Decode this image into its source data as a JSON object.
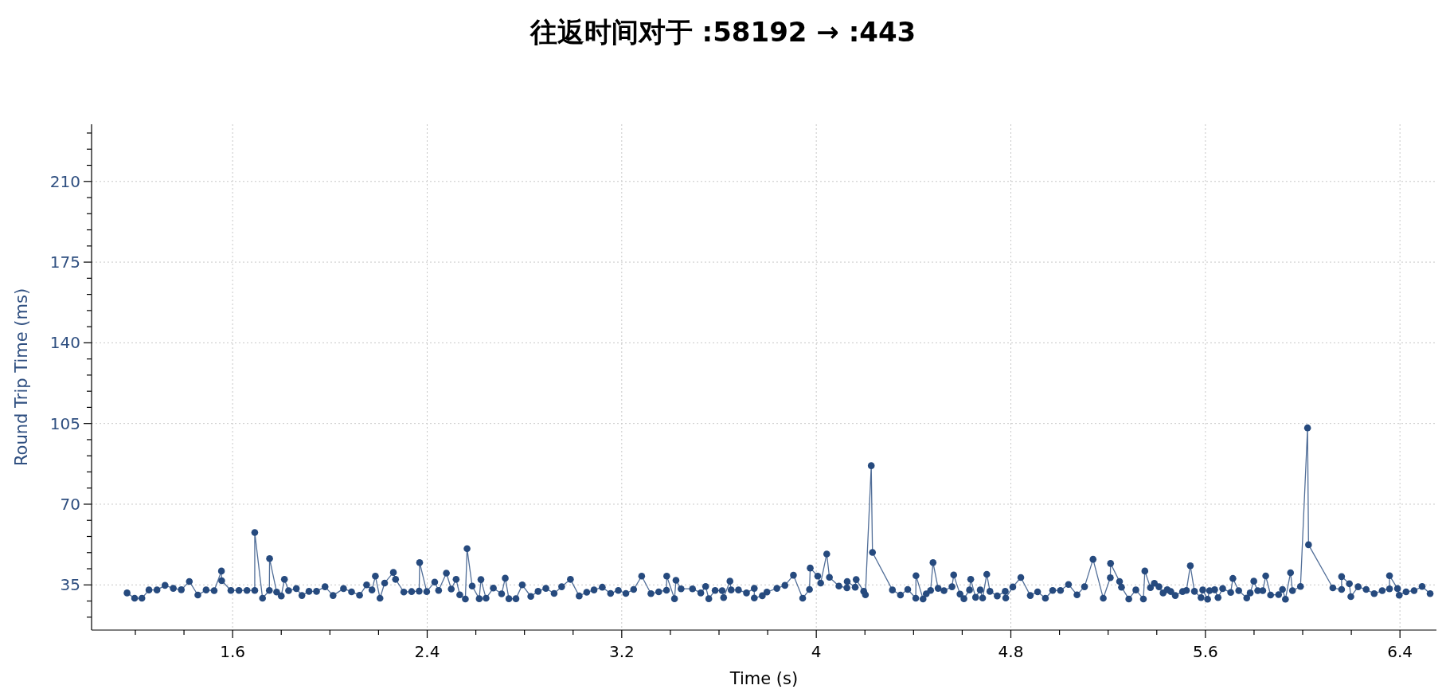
{
  "chart_data": {
    "type": "line",
    "title": "往返时间对于 :58192 → :443",
    "xlabel": "Time (s)",
    "ylabel": "Round Trip Time (ms)",
    "xlim": [
      1.02,
      6.55
    ],
    "ylim": [
      15.4,
      234.8
    ],
    "xticks": [
      {
        "value": 1.2,
        "label": null
      },
      {
        "value": 1.4,
        "label": null
      },
      1.6,
      {
        "value": 1.8,
        "label": null
      },
      {
        "value": 2.0,
        "label": null
      },
      {
        "value": 2.2,
        "label": null
      },
      2.4,
      {
        "value": 2.6,
        "label": null
      },
      {
        "value": 2.8,
        "label": null
      },
      {
        "value": 3.0,
        "label": null
      },
      3.2,
      {
        "value": 3.4,
        "label": null
      },
      {
        "value": 3.6,
        "label": null
      },
      {
        "value": 3.8,
        "label": null
      },
      4,
      {
        "value": 4.2,
        "label": null
      },
      {
        "value": 4.4,
        "label": null
      },
      {
        "value": 4.6,
        "label": null
      },
      4.8,
      {
        "value": 5.0,
        "label": null
      },
      {
        "value": 5.2,
        "label": null
      },
      {
        "value": 5.4,
        "label": null
      },
      5.6,
      {
        "value": 5.8,
        "label": null
      },
      {
        "value": 6.0,
        "label": null
      },
      {
        "value": 6.2,
        "label": null
      },
      6.4
    ],
    "yticks": [
      {
        "value": 21,
        "label": null
      },
      {
        "value": 28,
        "label": null
      },
      35,
      {
        "value": 42,
        "label": null
      },
      {
        "value": 49,
        "label": null
      },
      {
        "value": 56,
        "label": null
      },
      {
        "value": 63,
        "label": null
      },
      70,
      {
        "value": 77,
        "label": null
      },
      {
        "value": 84,
        "label": null
      },
      {
        "value": 91,
        "label": null
      },
      {
        "value": 98,
        "label": null
      },
      105,
      {
        "value": 112,
        "label": null
      },
      {
        "value": 119,
        "label": null
      },
      {
        "value": 126,
        "label": null
      },
      {
        "value": 133,
        "label": null
      },
      140,
      {
        "value": 147,
        "label": null
      },
      {
        "value": 154,
        "label": null
      },
      {
        "value": 161,
        "label": null
      },
      {
        "value": 168,
        "label": null
      },
      175,
      {
        "value": 182,
        "label": null
      },
      {
        "value": 189,
        "label": null
      },
      {
        "value": 196,
        "label": null
      },
      {
        "value": 203,
        "label": null
      },
      210,
      {
        "value": 217,
        "label": null
      },
      {
        "value": 224,
        "label": null
      },
      {
        "value": 231,
        "label": null
      }
    ],
    "grid": true,
    "marker": "circle",
    "line_style": "solid",
    "series": [
      {
        "color": "#264a7e",
        "x": [
          1.166,
          1.197,
          1.227,
          1.256,
          1.289,
          1.322,
          1.356,
          1.389,
          1.422,
          1.457,
          1.491,
          1.524,
          1.554,
          1.555,
          1.593,
          1.626,
          1.659,
          1.691,
          1.691,
          1.723,
          1.751,
          1.752,
          1.781,
          1.8,
          1.813,
          1.83,
          1.862,
          1.885,
          1.914,
          1.945,
          1.98,
          2.013,
          2.056,
          2.089,
          2.122,
          2.151,
          2.173,
          2.187,
          2.206,
          2.225,
          2.261,
          2.27,
          2.304,
          2.336,
          2.367,
          2.369,
          2.398,
          2.431,
          2.447,
          2.479,
          2.499,
          2.519,
          2.534,
          2.557,
          2.564,
          2.585,
          2.614,
          2.621,
          2.642,
          2.672,
          2.706,
          2.721,
          2.736,
          2.765,
          2.791,
          2.826,
          2.856,
          2.888,
          2.922,
          2.953,
          2.989,
          3.025,
          3.056,
          3.086,
          3.12,
          3.154,
          3.186,
          3.217,
          3.249,
          3.282,
          3.32,
          3.352,
          3.384,
          3.385,
          3.417,
          3.423,
          3.444,
          3.491,
          3.525,
          3.545,
          3.558,
          3.584,
          3.613,
          3.619,
          3.645,
          3.65,
          3.68,
          3.713,
          3.745,
          3.745,
          3.778,
          3.797,
          3.838,
          3.871,
          3.906,
          3.944,
          3.972,
          3.975,
          4.006,
          4.018,
          4.043,
          4.054,
          4.093,
          4.126,
          4.127,
          4.16,
          4.164,
          4.195,
          4.202,
          4.226,
          4.231,
          4.313,
          4.346,
          4.376,
          4.409,
          4.41,
          4.439,
          4.452,
          4.47,
          4.48,
          4.501,
          4.525,
          4.558,
          4.565,
          4.591,
          4.607,
          4.63,
          4.635,
          4.655,
          4.674,
          4.684,
          4.701,
          4.714,
          4.744,
          4.777,
          4.779,
          4.808,
          4.841,
          4.88,
          4.91,
          4.942,
          4.972,
          5.004,
          5.037,
          5.072,
          5.103,
          5.138,
          5.18,
          5.209,
          5.21,
          5.247,
          5.255,
          5.285,
          5.314,
          5.345,
          5.351,
          5.374,
          5.39,
          5.409,
          5.426,
          5.443,
          5.458,
          5.476,
          5.506,
          5.522,
          5.538,
          5.555,
          5.582,
          5.589,
          5.609,
          5.617,
          5.638,
          5.652,
          5.671,
          5.704,
          5.713,
          5.737,
          5.77,
          5.784,
          5.799,
          5.815,
          5.836,
          5.848,
          5.868,
          5.901,
          5.917,
          5.929,
          5.95,
          5.958,
          5.991,
          6.02,
          6.024,
          6.124,
          6.16,
          6.16,
          6.192,
          6.198,
          6.228,
          6.261,
          6.294,
          6.327,
          6.357,
          6.357,
          6.39,
          6.397,
          6.425,
          6.458,
          6.491,
          6.524
        ],
        "values": [
          31.5,
          29.2,
          29.2,
          32.8,
          32.8,
          34.8,
          33.5,
          32.9,
          36.5,
          30.6,
          32.8,
          32.5,
          41.0,
          36.8,
          32.6,
          32.6,
          32.6,
          32.6,
          57.7,
          29.2,
          32.6,
          46.4,
          31.9,
          30.2,
          37.4,
          32.5,
          33.4,
          30.4,
          32.2,
          32.2,
          34.2,
          30.4,
          33.4,
          32.0,
          30.5,
          35.0,
          32.8,
          38.8,
          29.2,
          35.8,
          40.4,
          37.4,
          31.9,
          32.1,
          32.3,
          44.7,
          32.1,
          36.2,
          32.6,
          40.1,
          33.2,
          37.4,
          30.7,
          28.9,
          50.7,
          34.5,
          29.0,
          37.3,
          29.2,
          33.6,
          31.1,
          37.9,
          29.0,
          29.0,
          35.0,
          30.0,
          32.2,
          33.5,
          31.3,
          34.2,
          37.4,
          30.2,
          31.8,
          32.8,
          34.0,
          31.3,
          32.6,
          31.3,
          33.0,
          38.8,
          31.2,
          32.0,
          32.7,
          38.8,
          29.0,
          37.0,
          33.3,
          33.3,
          31.5,
          34.3,
          29.0,
          32.6,
          32.5,
          29.5,
          36.6,
          32.8,
          32.8,
          31.5,
          33.5,
          29.3,
          30.3,
          31.9,
          33.5,
          34.8,
          39.2,
          29.2,
          33.0,
          42.3,
          38.8,
          35.8,
          48.4,
          38.3,
          34.5,
          33.7,
          36.5,
          34.0,
          37.3,
          32.2,
          30.7,
          86.7,
          49.1,
          32.8,
          30.6,
          33.0,
          29.2,
          39.0,
          28.9,
          31.1,
          32.6,
          44.7,
          33.5,
          32.5,
          34.2,
          39.3,
          31.0,
          29.0,
          32.8,
          37.4,
          29.6,
          32.8,
          29.3,
          39.6,
          32.2,
          30.2,
          32.2,
          29.3,
          34.1,
          38.2,
          30.4,
          32.0,
          29.2,
          32.6,
          32.6,
          35.2,
          30.7,
          34.2,
          46.1,
          29.2,
          38.1,
          44.3,
          36.5,
          34.0,
          28.9,
          32.8,
          28.9,
          41.0,
          33.8,
          35.7,
          34.2,
          31.5,
          32.9,
          32.1,
          30.4,
          32.1,
          32.6,
          43.3,
          32.2,
          29.5,
          32.8,
          28.8,
          32.5,
          32.9,
          29.5,
          33.4,
          31.7,
          37.8,
          32.5,
          29.3,
          31.5,
          36.6,
          32.5,
          32.5,
          38.9,
          30.6,
          30.8,
          33.0,
          28.8,
          40.3,
          32.5,
          34.3,
          103.1,
          52.4,
          33.7,
          33.0,
          38.6,
          35.5,
          29.9,
          34.2,
          33.0,
          31.2,
          32.5,
          33.3,
          39.0,
          33.4,
          30.5,
          32.0,
          32.5,
          34.3,
          31.2
        ]
      }
    ]
  }
}
